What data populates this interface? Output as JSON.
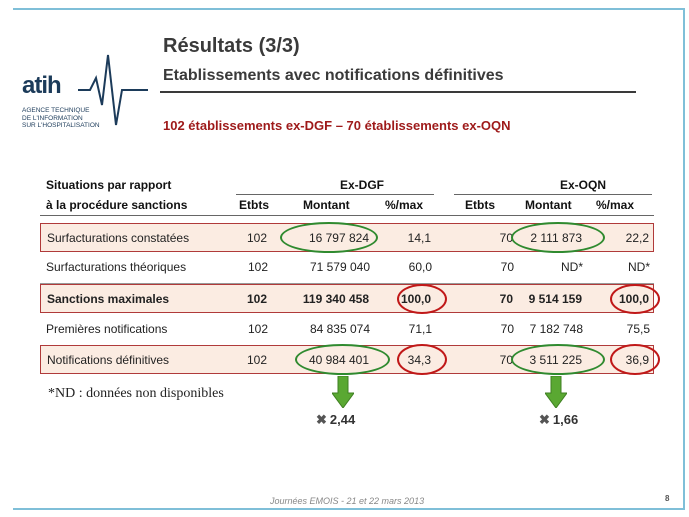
{
  "logo": {
    "name": "atih",
    "lines": [
      "AGENCE TECHNIQUE",
      "DE L'INFORMATION",
      "SUR L'HOSPITALISATION"
    ]
  },
  "title": "Résultats (3/3)",
  "subtitle": "Etablissements avec notifications définitives",
  "highlight": "102 établissements ex-DGF – 70 établissements ex-OQN",
  "table": {
    "header_line1_label": "Situations par rapport",
    "header_line2_label": "à la procédure sanctions",
    "group_dgf": "Ex-DGF",
    "group_oqn": "Ex-OQN",
    "col_etbts": "Etbts",
    "col_montant": "Montant",
    "col_pctmax": "%/max",
    "rows": [
      {
        "label": "Surfacturations constatées",
        "dgf_etbts": "102",
        "dgf_montant": "16 797 824",
        "dgf_pct": "14,1",
        "oqn_etbts": "70",
        "oqn_montant": "2 111 873",
        "oqn_pct": "22,2"
      },
      {
        "label": "Surfacturations théoriques",
        "dgf_etbts": "102",
        "dgf_montant": "71 579 040",
        "dgf_pct": "60,0",
        "oqn_etbts": "70",
        "oqn_montant": "ND*",
        "oqn_pct": "ND*"
      },
      {
        "label": "Sanctions maximales",
        "dgf_etbts": "102",
        "dgf_montant": "119 340 458",
        "dgf_pct": "100,0",
        "oqn_etbts": "70",
        "oqn_montant": "9 514 159",
        "oqn_pct": "100,0"
      },
      {
        "label": "Premières notifications",
        "dgf_etbts": "102",
        "dgf_montant": "84 835 074",
        "dgf_pct": "71,1",
        "oqn_etbts": "70",
        "oqn_montant": "7 182 748",
        "oqn_pct": "75,5"
      },
      {
        "label": "Notifications définitives",
        "dgf_etbts": "102",
        "dgf_montant": "40 984 401",
        "dgf_pct": "34,3",
        "oqn_etbts": "70",
        "oqn_montant": "3 511 225",
        "oqn_pct": "36,9"
      }
    ]
  },
  "note": "*ND : données non disponibles",
  "factor_dgf": "2,44",
  "factor_oqn": "1,66",
  "multiply_symbol": "✖",
  "footer": "Journées EMOIS - 21 et 22 mars 2013",
  "page_number": "8",
  "colors": {
    "frame": "#7fbfd8",
    "title": "#3a3a3a",
    "highlight": "#9e1a1a",
    "box_border": "#b03a3a",
    "box_fill": "#fbece2",
    "green_ellipse": "#2f8a2f",
    "red_ellipse": "#c01818",
    "arrow": "#5aa832"
  }
}
